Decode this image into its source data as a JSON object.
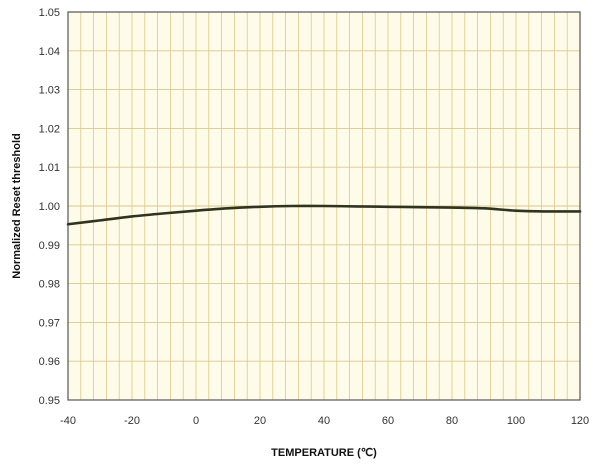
{
  "chart_data": {
    "type": "line",
    "title": "",
    "xlabel": "TEMPERATURE (℃)",
    "ylabel": "Normalized Reset threshold",
    "xlim": [
      -40,
      120
    ],
    "ylim": [
      0.95,
      1.05
    ],
    "x_ticks": [
      -40,
      -20,
      0,
      20,
      40,
      60,
      80,
      100,
      120
    ],
    "x_tick_labels": [
      "-40",
      "-20",
      "0",
      "20",
      "40",
      "60",
      "80",
      "100",
      "120"
    ],
    "y_ticks": [
      0.95,
      0.96,
      0.97,
      0.98,
      0.99,
      1.0,
      1.01,
      1.02,
      1.03,
      1.04,
      1.05
    ],
    "y_tick_labels": [
      "0.95",
      "0.96",
      "0.97",
      "0.98",
      "0.99",
      "1.00",
      "1.01",
      "1.02",
      "1.03",
      "1.04",
      "1.05"
    ],
    "grid": true,
    "x_minor_step": 4,
    "legend": "none",
    "colors": {
      "background": "#FEFBE8",
      "grid": "#D8C98E",
      "line": "#2F3320",
      "frame": "#555555"
    },
    "series": [
      {
        "x": [
          -40,
          -30,
          -20,
          -10,
          0,
          10,
          20,
          30,
          40,
          50,
          60,
          70,
          80,
          90,
          100,
          110,
          120
        ],
        "y": [
          0.9953,
          0.9963,
          0.9973,
          0.9981,
          0.9988,
          0.9994,
          0.9998,
          1.0,
          1.0,
          0.9999,
          0.9998,
          0.9997,
          0.9996,
          0.9994,
          0.9988,
          0.9986,
          0.9986
        ]
      }
    ]
  }
}
